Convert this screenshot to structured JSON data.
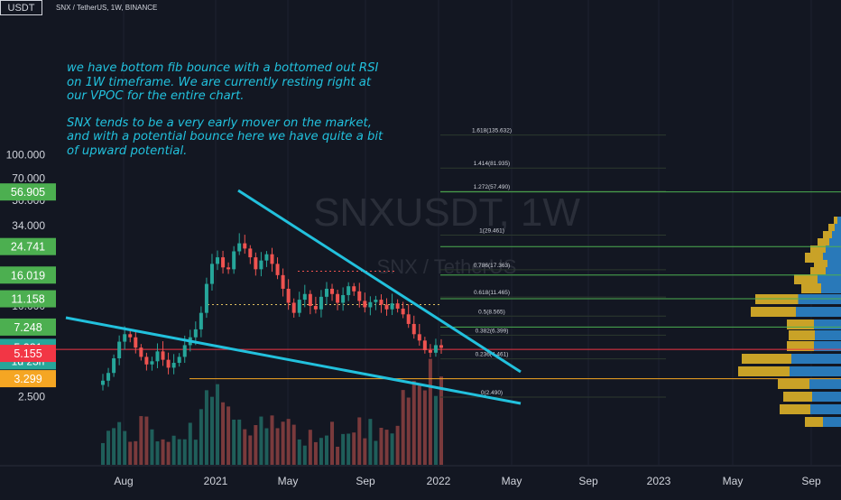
{
  "header": {
    "pair_label": "SNX / TetherUS, 1W, BINANCE",
    "currency_badge": "USDT"
  },
  "annotation": {
    "paragraph_1": "we have bottom fib bounce with a bottomed out RSI on 1W timeframe. We are currently resting right at our VPOC for the entire chart.",
    "paragraph_2": "SNX tends to be a very early mover on the market, and with a potential bounce here we have quite a bit of upward potential."
  },
  "watermark": {
    "symbol": "SNXUSDT, 1W",
    "name": "SNX / TetherUS"
  },
  "colors": {
    "background": "#131722",
    "up": "#26a69a",
    "down": "#ef5350",
    "trendline": "#22c1dd",
    "fib_line": "#4caf50",
    "vpoc_line": "#f23645",
    "support_line": "#f5a623",
    "vp_up": "#2979b9",
    "vp_down": "#c9a227",
    "axis_text": "#d1d4dc"
  },
  "chart_data": {
    "type": "candlestick",
    "timeframe": "1W",
    "y_scale": "log",
    "ylim": [
      2.4,
      140
    ],
    "y_ticks": [
      "100.000",
      "70.000",
      "50.000",
      "34.000",
      "10.000",
      "2.500"
    ],
    "x_ticks": [
      "Aug",
      "2021",
      "May",
      "Sep",
      "2022",
      "May",
      "Sep",
      "2023",
      "May",
      "Sep"
    ],
    "price_badges": [
      {
        "value": "56.905",
        "price": 56.905,
        "color": "#4caf50"
      },
      {
        "value": "24.741",
        "price": 24.741,
        "color": "#4caf50"
      },
      {
        "value": "16.019",
        "price": 16.019,
        "color": "#4caf50"
      },
      {
        "value": "11.158",
        "price": 11.158,
        "color": "#4caf50"
      },
      {
        "value": "7.248",
        "price": 7.248,
        "color": "#4caf50"
      },
      {
        "value": "5.281",
        "price": 5.281,
        "color": "#26a69a",
        "sub": "1d 23h"
      },
      {
        "value": "5.155",
        "price": 4.85,
        "color": "#f23645"
      },
      {
        "value": "3.299",
        "price": 3.299,
        "color": "#f5a623"
      }
    ],
    "fib_levels": [
      {
        "label": "1.618(135.632)",
        "price": 135.632
      },
      {
        "label": "1.414(81.935)",
        "price": 81.935
      },
      {
        "label": "1.272(57.490)",
        "price": 57.49
      },
      {
        "label": "1(29.461)",
        "price": 29.461
      },
      {
        "label": "0.786(17.363)",
        "price": 17.363
      },
      {
        "label": "0.618(11.465)",
        "price": 11.465
      },
      {
        "label": "0.5(8.565)",
        "price": 8.565
      },
      {
        "label": "0.382(6.399)",
        "price": 6.399
      },
      {
        "label": "0.236(4.461)",
        "price": 4.461
      },
      {
        "label": "0(2.490)",
        "price": 2.49
      }
    ],
    "horizontal_levels": [
      {
        "name": "vpoc",
        "price": 5.155
      },
      {
        "name": "support",
        "price": 3.299
      }
    ],
    "weekly_closes_approx": [
      3.2,
      3.6,
      4.5,
      5.8,
      6.5,
      6.2,
      5.3,
      4.6,
      4.1,
      4.3,
      5.0,
      4.4,
      3.9,
      4.2,
      4.6,
      5.5,
      6.2,
      7.0,
      9.0,
      14.0,
      19.0,
      21.0,
      18.0,
      17.5,
      23.0,
      26.0,
      24.0,
      21.0,
      17.5,
      20.0,
      22.0,
      19.0,
      16.0,
      13.0,
      10.5,
      9.0,
      11.0,
      12.0,
      10.0,
      9.5,
      11.5,
      13.0,
      12.0,
      10.5,
      11.8,
      13.5,
      12.5,
      10.8,
      9.8,
      10.6,
      11.0,
      10.2,
      9.5,
      10.4,
      9.6,
      8.8,
      7.6,
      6.5,
      5.9,
      5.1,
      4.9,
      5.5,
      5.281
    ]
  }
}
